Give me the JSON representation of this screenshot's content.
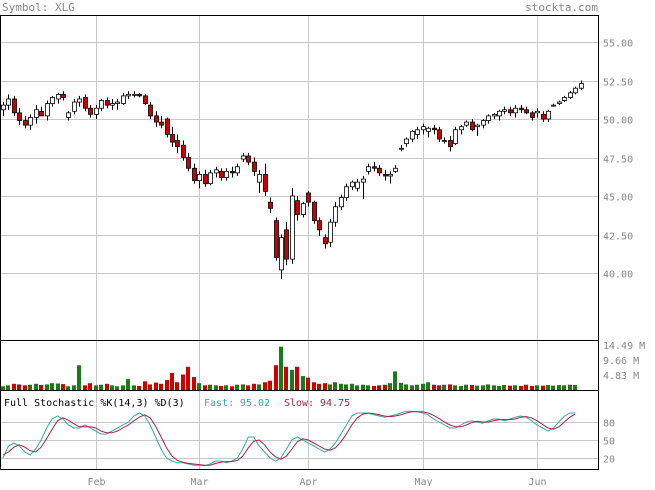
{
  "header": {
    "symbol_label": "Symbol: XLG",
    "brand": "stockta.com"
  },
  "colors": {
    "background": "#ffffff",
    "grid": "#c8c8c8",
    "frame": "#000000",
    "text": "#888888",
    "up_candle": "#ffffff",
    "down_candle": "#cc0000",
    "up_volume": "#1a7a1a",
    "down_volume": "#cc0000",
    "fast_line": "#33aaaa",
    "slow_line": "#aa2244"
  },
  "chart_data": [
    {
      "type": "candlestick",
      "title": "",
      "x_ticks": [
        "Feb",
        "Mar",
        "Apr",
        "May",
        "Jun"
      ],
      "y_ticks": [
        "55.00",
        "52.50",
        "50.00",
        "47.50",
        "45.00",
        "42.50",
        "40.00"
      ],
      "ylim": [
        37.0,
        56.5
      ],
      "grid": true,
      "candles": [
        [
          50.6,
          51.1,
          50.2,
          50.9
        ],
        [
          50.9,
          51.6,
          50.6,
          51.3
        ],
        [
          51.3,
          51.5,
          50.2,
          50.4
        ],
        [
          50.4,
          50.7,
          49.6,
          49.9
        ],
        [
          49.9,
          50.2,
          49.4,
          49.6
        ],
        [
          49.6,
          50.3,
          49.3,
          50.1
        ],
        [
          50.1,
          50.9,
          49.7,
          50.6
        ],
        [
          50.5,
          50.8,
          50.2,
          50.2
        ],
        [
          50.2,
          51.2,
          49.9,
          51.0
        ],
        [
          51.0,
          51.5,
          50.8,
          51.4
        ],
        [
          51.3,
          51.7,
          51.0,
          51.6
        ],
        [
          51.6,
          51.8,
          51.2,
          51.4
        ],
        [
          50.1,
          50.5,
          49.9,
          50.4
        ],
        [
          50.5,
          51.3,
          50.3,
          51.1
        ],
        [
          51.1,
          51.5,
          50.8,
          51.3
        ],
        [
          51.4,
          51.6,
          50.5,
          50.7
        ],
        [
          50.7,
          50.9,
          50.1,
          50.3
        ],
        [
          50.3,
          50.9,
          50.0,
          50.7
        ],
        [
          50.7,
          51.3,
          50.5,
          51.2
        ],
        [
          51.2,
          51.4,
          50.7,
          50.9
        ],
        [
          50.9,
          51.3,
          50.6,
          51.0
        ],
        [
          51.0,
          51.3,
          50.6,
          51.1
        ],
        [
          51.0,
          51.7,
          50.9,
          51.5
        ],
        [
          51.5,
          51.8,
          51.3,
          51.6
        ],
        [
          51.6,
          51.8,
          51.4,
          51.6
        ],
        [
          51.6,
          51.7,
          51.4,
          51.5
        ],
        [
          51.5,
          51.6,
          50.9,
          51.0
        ],
        [
          50.9,
          51.1,
          50.0,
          50.2
        ],
        [
          50.2,
          50.5,
          49.5,
          49.8
        ],
        [
          49.8,
          50.2,
          49.4,
          49.6
        ],
        [
          50.0,
          50.1,
          48.8,
          49.0
        ],
        [
          49.0,
          49.5,
          48.2,
          48.5
        ],
        [
          48.6,
          49.0,
          47.8,
          48.2
        ],
        [
          48.3,
          48.6,
          47.3,
          47.5
        ],
        [
          47.5,
          47.8,
          46.6,
          46.8
        ],
        [
          46.8,
          47.1,
          45.8,
          46.0
        ],
        [
          46.0,
          46.6,
          45.5,
          46.4
        ],
        [
          46.4,
          46.7,
          45.6,
          45.8
        ],
        [
          45.8,
          46.7,
          45.7,
          46.5
        ],
        [
          46.5,
          46.9,
          46.2,
          46.7
        ],
        [
          46.6,
          46.8,
          46.0,
          46.2
        ],
        [
          46.2,
          46.8,
          46.0,
          46.6
        ],
        [
          46.6,
          46.9,
          46.2,
          46.5
        ],
        [
          46.5,
          47.1,
          46.3,
          46.9
        ],
        [
          47.4,
          47.8,
          47.2,
          47.6
        ],
        [
          47.6,
          47.8,
          47.0,
          47.2
        ],
        [
          47.2,
          47.5,
          46.3,
          46.6
        ],
        [
          45.9,
          46.7,
          45.2,
          46.4
        ],
        [
          46.4,
          47.1,
          45.0,
          45.3
        ],
        [
          44.6,
          44.9,
          43.9,
          44.2
        ],
        [
          43.4,
          43.6,
          40.8,
          41.0
        ],
        [
          40.2,
          42.5,
          39.6,
          42.3
        ],
        [
          42.8,
          43.3,
          40.5,
          40.9
        ],
        [
          40.9,
          45.5,
          40.6,
          45.0
        ],
        [
          44.7,
          45.0,
          43.4,
          43.8
        ],
        [
          43.8,
          44.6,
          43.6,
          44.5
        ],
        [
          45.2,
          45.3,
          44.3,
          44.6
        ],
        [
          44.6,
          44.7,
          43.2,
          43.4
        ],
        [
          43.4,
          43.6,
          42.4,
          42.8
        ],
        [
          42.3,
          42.5,
          41.6,
          41.9
        ],
        [
          42.0,
          43.5,
          41.7,
          43.3
        ],
        [
          43.3,
          44.6,
          43.0,
          44.3
        ],
        [
          44.3,
          45.1,
          44.1,
          44.9
        ],
        [
          44.9,
          45.8,
          44.7,
          45.6
        ],
        [
          45.6,
          46.0,
          45.4,
          45.9
        ],
        [
          45.5,
          46.1,
          45.3,
          45.9
        ],
        [
          45.9,
          46.3,
          44.8,
          46.1
        ],
        [
          46.6,
          47.1,
          46.4,
          46.9
        ],
        [
          46.9,
          47.2,
          46.6,
          46.8
        ],
        [
          46.8,
          47.0,
          46.3,
          46.5
        ],
        [
          46.4,
          46.7,
          46.0,
          46.3
        ],
        [
          46.3,
          46.6,
          45.8,
          46.4
        ],
        [
          46.6,
          47.0,
          46.5,
          46.8
        ],
        [
          48.1,
          48.3,
          47.9,
          48.1
        ],
        [
          48.4,
          48.8,
          48.2,
          48.7
        ],
        [
          48.7,
          49.3,
          48.5,
          49.2
        ],
        [
          49.0,
          49.5,
          48.7,
          49.3
        ],
        [
          49.3,
          49.7,
          49.0,
          49.5
        ],
        [
          49.2,
          49.5,
          48.8,
          49.4
        ],
        [
          49.4,
          49.6,
          49.0,
          49.3
        ],
        [
          49.3,
          49.5,
          48.5,
          48.7
        ],
        [
          48.6,
          48.8,
          48.4,
          48.6
        ],
        [
          48.6,
          48.9,
          47.9,
          48.2
        ],
        [
          48.4,
          49.5,
          48.3,
          49.3
        ],
        [
          49.3,
          49.6,
          49.0,
          49.5
        ],
        [
          49.6,
          49.9,
          49.5,
          49.8
        ],
        [
          49.8,
          50.0,
          49.2,
          49.3
        ],
        [
          49.5,
          49.7,
          48.9,
          49.6
        ],
        [
          49.6,
          50.0,
          49.4,
          49.9
        ],
        [
          49.9,
          50.3,
          49.7,
          50.2
        ],
        [
          50.2,
          50.4,
          50.0,
          50.3
        ],
        [
          50.2,
          50.6,
          49.9,
          50.5
        ],
        [
          50.5,
          50.8,
          50.3,
          50.6
        ],
        [
          50.6,
          50.8,
          50.2,
          50.4
        ],
        [
          50.4,
          50.9,
          50.1,
          50.7
        ],
        [
          50.7,
          50.9,
          50.4,
          50.6
        ],
        [
          50.6,
          50.8,
          50.3,
          50.4
        ],
        [
          50.4,
          50.5,
          49.9,
          50.1
        ],
        [
          50.4,
          50.7,
          50.1,
          50.5
        ],
        [
          50.3,
          50.5,
          49.8,
          50.0
        ],
        [
          50.0,
          50.6,
          49.8,
          50.5
        ],
        [
          50.9,
          51.0,
          50.8,
          50.9
        ],
        [
          51.0,
          51.2,
          50.9,
          51.1
        ],
        [
          51.2,
          51.5,
          51.1,
          51.4
        ],
        [
          51.4,
          51.8,
          51.3,
          51.7
        ],
        [
          51.7,
          52.1,
          51.6,
          52.0
        ],
        [
          52.0,
          52.5,
          51.9,
          52.3
        ]
      ],
      "month_positions": [
        [
          17,
          "Feb"
        ],
        [
          36,
          "Mar"
        ],
        [
          56,
          "Apr"
        ],
        [
          77,
          "May"
        ],
        [
          98,
          "Jun"
        ]
      ]
    },
    {
      "type": "bar",
      "title": "",
      "y_ticks": [
        "14.49 M",
        "9.66 M",
        "4.83 M"
      ],
      "ylim": [
        0,
        15.5
      ],
      "volumes": [
        1.2,
        1.5,
        2.0,
        1.8,
        1.5,
        1.7,
        2.0,
        1.6,
        1.8,
        2.2,
        2.1,
        1.9,
        1.2,
        1.5,
        8.0,
        1.5,
        2.2,
        1.5,
        1.7,
        2.0,
        1.5,
        1.2,
        1.5,
        3.5,
        1.5,
        1.3,
        2.8,
        1.8,
        2.4,
        2.0,
        3.2,
        5.5,
        2.5,
        5.0,
        7.5,
        4.2,
        2.2,
        1.5,
        1.7,
        1.5,
        1.3,
        1.5,
        1.2,
        1.7,
        1.8,
        1.5,
        2.0,
        1.8,
        2.5,
        3.0,
        8.0,
        14.0,
        7.5,
        6.5,
        7.5,
        4.5,
        4.0,
        2.5,
        2.0,
        2.2,
        1.8,
        2.5,
        2.0,
        1.8,
        2.0,
        1.5,
        1.7,
        1.5,
        1.3,
        1.5,
        1.7,
        2.2,
        6.0,
        2.3,
        1.8,
        1.5,
        1.7,
        2.0,
        2.5,
        1.7,
        1.5,
        1.7,
        1.8,
        1.5,
        1.3,
        1.7,
        1.6,
        1.4,
        1.5,
        1.8,
        1.5,
        1.3,
        1.6,
        1.4,
        1.5,
        1.3,
        1.7,
        1.3,
        1.5,
        1.4,
        1.6,
        1.4,
        1.6,
        1.5,
        1.7,
        1.6
      ]
    },
    {
      "type": "line",
      "title": "Full Stochastic %K(14,3) %D(3)",
      "y_ticks": [
        "80",
        "50",
        "20"
      ],
      "ylim": [
        0,
        100
      ],
      "legend": [
        {
          "label": "Fast:",
          "value": "95.02"
        },
        {
          "label": "Slow:",
          "value": "94.75"
        }
      ],
      "series": [
        {
          "name": "Fast",
          "values": [
            20,
            40,
            45,
            40,
            30,
            25,
            35,
            50,
            70,
            85,
            90,
            85,
            75,
            70,
            70,
            75,
            70,
            65,
            60,
            60,
            65,
            70,
            75,
            80,
            90,
            95,
            90,
            75,
            55,
            35,
            20,
            15,
            12,
            12,
            10,
            8,
            8,
            7,
            10,
            15,
            15,
            12,
            15,
            20,
            35,
            55,
            55,
            40,
            30,
            20,
            15,
            20,
            35,
            50,
            55,
            50,
            45,
            40,
            35,
            30,
            35,
            45,
            60,
            75,
            90,
            95,
            95,
            95,
            92,
            90,
            88,
            90,
            92,
            95,
            98,
            98,
            97,
            95,
            92,
            85,
            80,
            75,
            70,
            70,
            75,
            80,
            82,
            80,
            78,
            82,
            85,
            85,
            82,
            85,
            88,
            90,
            88,
            82,
            75,
            70,
            65,
            70,
            80,
            90,
            95,
            95
          ]
        },
        {
          "name": "Slow",
          "values": [
            25,
            30,
            38,
            42,
            38,
            32,
            30,
            38,
            52,
            68,
            82,
            87,
            83,
            77,
            72,
            72,
            72,
            70,
            65,
            62,
            62,
            65,
            70,
            75,
            82,
            88,
            92,
            87,
            73,
            55,
            37,
            23,
            16,
            13,
            11,
            10,
            9,
            8,
            8,
            11,
            13,
            14,
            14,
            16,
            23,
            37,
            48,
            50,
            42,
            30,
            22,
            18,
            23,
            35,
            47,
            52,
            50,
            45,
            40,
            35,
            33,
            37,
            47,
            60,
            75,
            87,
            93,
            95,
            94,
            92,
            90,
            89,
            90,
            92,
            95,
            97,
            97,
            97,
            95,
            91,
            86,
            80,
            75,
            72,
            72,
            75,
            79,
            81,
            80,
            80,
            82,
            84,
            84,
            84,
            85,
            88,
            89,
            87,
            82,
            76,
            70,
            68,
            72,
            80,
            88,
            93
          ]
        }
      ]
    }
  ]
}
